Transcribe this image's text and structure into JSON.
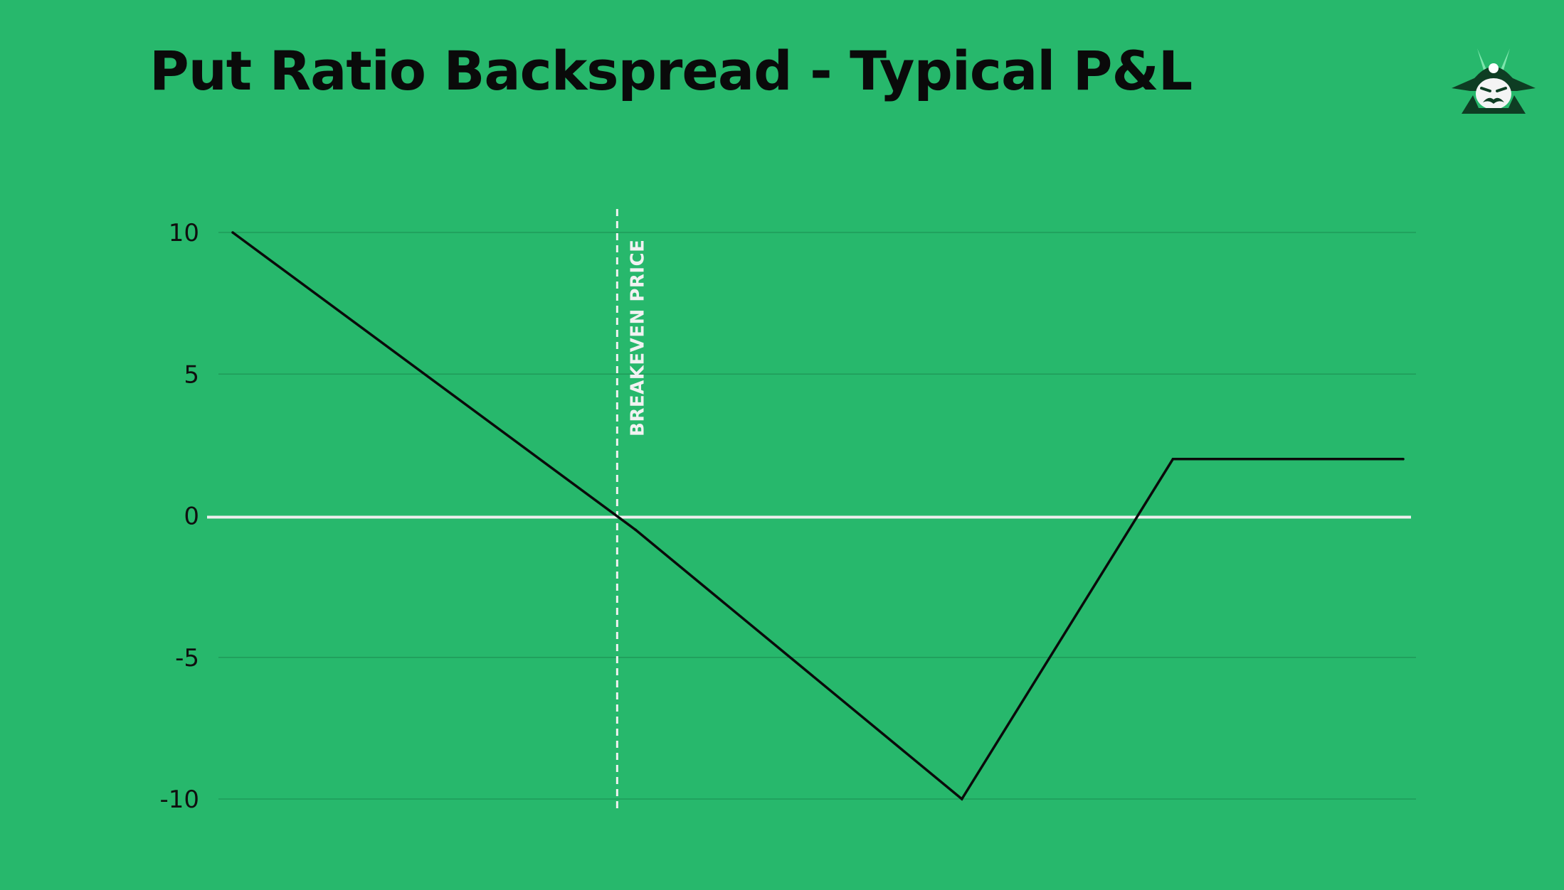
{
  "page": {
    "background": "#27b86c",
    "logo_icon": "samurai-mascot-icon"
  },
  "chart_data": {
    "type": "line",
    "title": "Put Ratio Backspread - Typical P&L",
    "xlabel": "",
    "ylabel": "",
    "ylim": [
      -10,
      10
    ],
    "y_ticks": [
      "10",
      "5",
      "0",
      "-5",
      "-10"
    ],
    "grid": true,
    "x": [
      0,
      10.5,
      19,
      24.5,
      30.5
    ],
    "series": [
      {
        "values": [
          10,
          -0.5,
          -10,
          2,
          2
        ],
        "color": "#0a0a0a"
      }
    ],
    "annotations": [
      {
        "type": "vertical-dashed-line",
        "x": 10,
        "label": "BREAKEVEN PRICE",
        "color": "#f2f2f2"
      }
    ],
    "zero_line_color": "#eeeeee",
    "grid_color": "#1f9a59"
  }
}
